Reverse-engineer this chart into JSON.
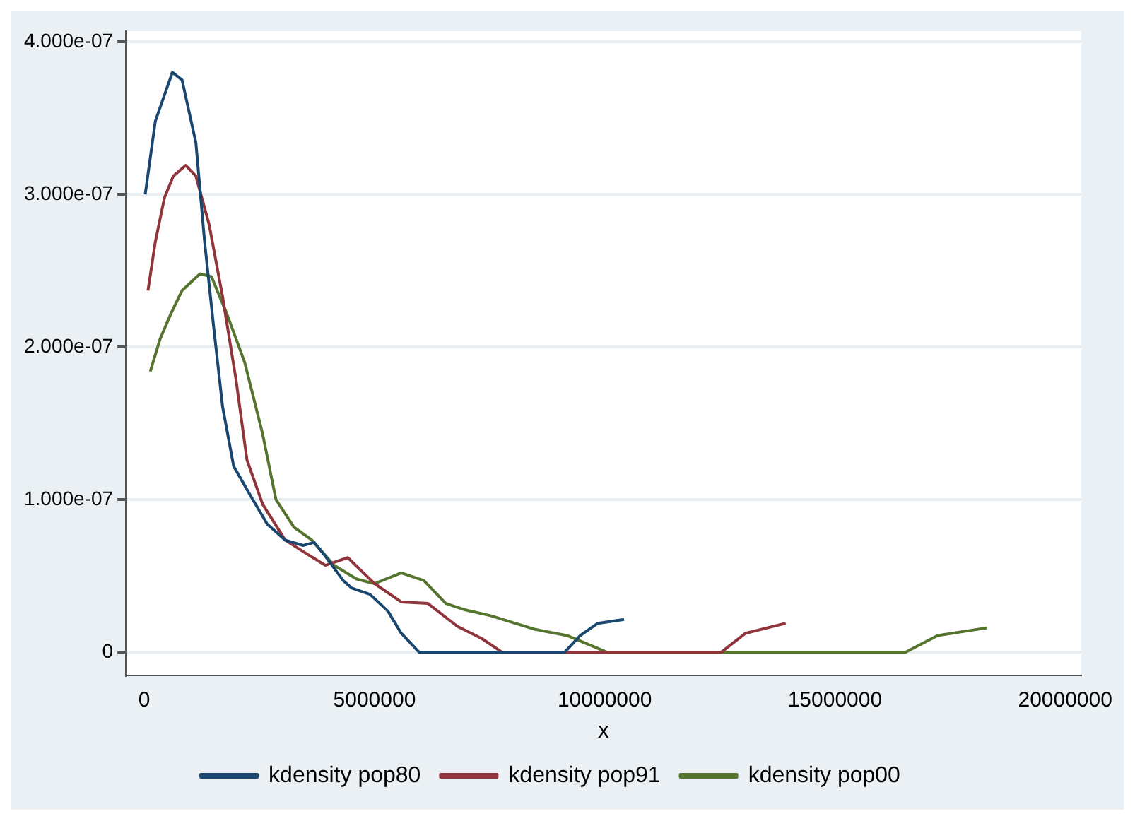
{
  "chart_data": {
    "type": "line",
    "xlabel": "x",
    "xlim": [
      -400000,
      20350000
    ],
    "ylim": [
      -1.5e-08,
      4.07e-07
    ],
    "xticks": [
      0,
      5000000,
      10000000,
      15000000,
      20000000
    ],
    "yticks": [
      0,
      {
        "value": 1e-07,
        "label": "1.000e-07"
      },
      {
        "value": 2e-07,
        "label": "2.000e-07"
      },
      {
        "value": 3e-07,
        "label": "3.000e-07"
      },
      {
        "value": 4e-07,
        "label": "4.000e-07"
      }
    ],
    "grid": "y",
    "legend": "bottom",
    "line_style": "solid",
    "marker": "none",
    "series": [
      {
        "name": "kdensity pop80",
        "color": "#1a476f",
        "x": [
          20000,
          240000,
          610000,
          820000,
          1120000,
          1310000,
          1500000,
          1700000,
          1940000,
          2280000,
          2670000,
          3060000,
          3450000,
          3690000,
          3930000,
          4320000,
          4510000,
          4900000,
          5290000,
          5580000,
          5970000,
          9130000,
          9470000,
          9850000,
          10420000
        ],
        "values": [
          3e-07,
          3.48e-07,
          3.8e-07,
          3.75e-07,
          3.34e-07,
          2.69e-07,
          2.15e-07,
          1.61e-07,
          1.22e-07,
          1.04e-07,
          8.4e-08,
          7.35e-08,
          7e-08,
          7.2e-08,
          6.3e-08,
          4.7e-08,
          4.2e-08,
          3.8e-08,
          2.7e-08,
          1.25e-08,
          0,
          0,
          1.1e-08,
          1.9e-08,
          2.15e-08
        ]
      },
      {
        "name": "kdensity pop91",
        "color": "#90353b",
        "x": [
          80000,
          240000,
          440000,
          630000,
          900000,
          1120000,
          1410000,
          1700000,
          1990000,
          2230000,
          2570000,
          3060000,
          3450000,
          3930000,
          4420000,
          5000000,
          5580000,
          6160000,
          6800000,
          7330000,
          7770000,
          12530000,
          13060000,
          13930000
        ],
        "values": [
          2.37e-07,
          2.69e-07,
          2.98e-07,
          3.12e-07,
          3.19e-07,
          3.12e-07,
          2.8e-07,
          2.33e-07,
          1.79e-07,
          1.26e-07,
          9.7e-08,
          7.35e-08,
          6.6e-08,
          5.7e-08,
          6.2e-08,
          4.5e-08,
          3.3e-08,
          3.2e-08,
          1.7e-08,
          9e-09,
          0,
          0,
          1.25e-08,
          1.9e-08
        ]
      },
      {
        "name": "kdensity pop00",
        "color": "#55752f",
        "x": [
          130000,
          340000,
          580000,
          820000,
          1210000,
          1460000,
          1790000,
          2180000,
          2570000,
          2860000,
          3250000,
          3640000,
          4120000,
          4610000,
          5000000,
          5580000,
          6070000,
          6550000,
          6940000,
          7520000,
          8490000,
          9180000,
          10050000,
          16530000,
          17230000,
          18300000
        ],
        "values": [
          1.84e-07,
          2.05e-07,
          2.22e-07,
          2.37e-07,
          2.48e-07,
          2.46e-07,
          2.22e-07,
          1.9e-07,
          1.43e-07,
          1e-07,
          8.2e-08,
          7.35e-08,
          5.7e-08,
          4.8e-08,
          4.5e-08,
          5.2e-08,
          4.7e-08,
          3.2e-08,
          2.8e-08,
          2.4e-08,
          1.5e-08,
          1.1e-08,
          0,
          0,
          1.1e-08,
          1.6e-08
        ]
      }
    ]
  }
}
